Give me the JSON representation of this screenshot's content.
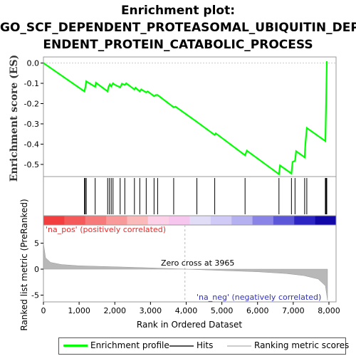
{
  "title_lines": [
    "Enrichment plot:",
    "GO_SCF_DEPENDENT_PROTEASOMAL_UBIQUITIN_DEP",
    "ENDENT_PROTEIN_CATABOLIC_PROCESS"
  ],
  "chart_data": {
    "type": "line",
    "es_panel": {
      "ylabel": "Enrichment score (ES)",
      "ylim": [
        -0.56,
        0.03
      ],
      "yticks": [
        0.0,
        -0.1,
        -0.2,
        -0.3,
        -0.4,
        -0.5
      ],
      "ytick_labels": [
        "0.0",
        "-0.1",
        "-0.2",
        "-0.3",
        "-0.4",
        "-0.5"
      ],
      "series": [
        {
          "name": "Enrichment profile",
          "color": "#00ff00",
          "x": [
            0,
            1150,
            1180,
            1200,
            1450,
            1470,
            1800,
            1820,
            1860,
            1900,
            1950,
            2000,
            2150,
            2200,
            2280,
            2320,
            2550,
            2580,
            2700,
            2740,
            2880,
            2920,
            3100,
            3150,
            3200,
            3650,
            3700,
            4300,
            4800,
            4830,
            5650,
            5700,
            6600,
            6630,
            6950,
            6980,
            7050,
            7080,
            7320,
            7340,
            7380,
            7900,
            7920,
            7940,
            7960
          ],
          "y": [
            0.0,
            -0.14,
            -0.115,
            -0.09,
            -0.117,
            -0.097,
            -0.14,
            -0.12,
            -0.105,
            -0.115,
            -0.1,
            -0.107,
            -0.12,
            -0.102,
            -0.108,
            -0.1,
            -0.13,
            -0.122,
            -0.14,
            -0.13,
            -0.145,
            -0.14,
            -0.163,
            -0.158,
            -0.158,
            -0.218,
            -0.215,
            -0.29,
            -0.355,
            -0.347,
            -0.455,
            -0.432,
            -0.548,
            -0.505,
            -0.545,
            -0.488,
            -0.482,
            -0.435,
            -0.465,
            -0.4,
            -0.32,
            -0.385,
            -0.2,
            0.005,
            0.005
          ]
        }
      ]
    },
    "hits": [
      1150,
      1170,
      1200,
      1450,
      1800,
      1850,
      1900,
      1950,
      2150,
      2280,
      2550,
      2700,
      2880,
      3100,
      3200,
      3650,
      4300,
      4800,
      5650,
      6600,
      6950,
      7050,
      7320,
      7380,
      7900,
      7920,
      7940
    ],
    "rank_panel": {
      "ylabel": "Ranked list metric (PreRanked)",
      "ylim": [
        -6.3,
        8.5
      ],
      "yticks": [
        5,
        0,
        -5
      ],
      "ytick_labels": [
        "5",
        "0",
        "-5"
      ],
      "zero_cross_label": "Zero cross at 3965",
      "zero_cross": 3965,
      "pos_label": "'na_pos' (positively correlated)",
      "neg_label": "'na_neg' (negatively correlated)",
      "metric_points": [
        [
          0,
          5.0
        ],
        [
          60,
          2.2
        ],
        [
          200,
          1.3
        ],
        [
          500,
          0.9
        ],
        [
          1000,
          0.65
        ],
        [
          2000,
          0.45
        ],
        [
          3000,
          0.25
        ],
        [
          3965,
          0.0
        ],
        [
          5000,
          -0.25
        ],
        [
          6000,
          -0.5
        ],
        [
          6800,
          -0.85
        ],
        [
          7300,
          -1.25
        ],
        [
          7700,
          -1.9
        ],
        [
          7900,
          -3.2
        ],
        [
          7960,
          -6.0
        ]
      ]
    },
    "xlabel": "Rank in Ordered Dataset",
    "xlim": [
      0,
      8200
    ],
    "xticks": [
      0,
      1000,
      2000,
      3000,
      4000,
      5000,
      6000,
      7000,
      8000
    ],
    "xtick_labels": [
      "0",
      "1,000",
      "2,000",
      "3,000",
      "4,000",
      "5,000",
      "6,000",
      "7,000",
      "8,000"
    ],
    "heatmap_colors": [
      "#f23e3e",
      "#f45a5a",
      "#f67a7a",
      "#f89a9a",
      "#fbbaba",
      "#fcd0e6",
      "#f6c6ef",
      "#e2ddf7",
      "#cfcaf6",
      "#b5b0f0",
      "#8a84e6",
      "#5c57d8",
      "#2c25c4",
      "#1208a8"
    ]
  },
  "legend": {
    "profile": "Enrichment profile",
    "hits": "Hits",
    "metric": "Ranking metric scores"
  }
}
